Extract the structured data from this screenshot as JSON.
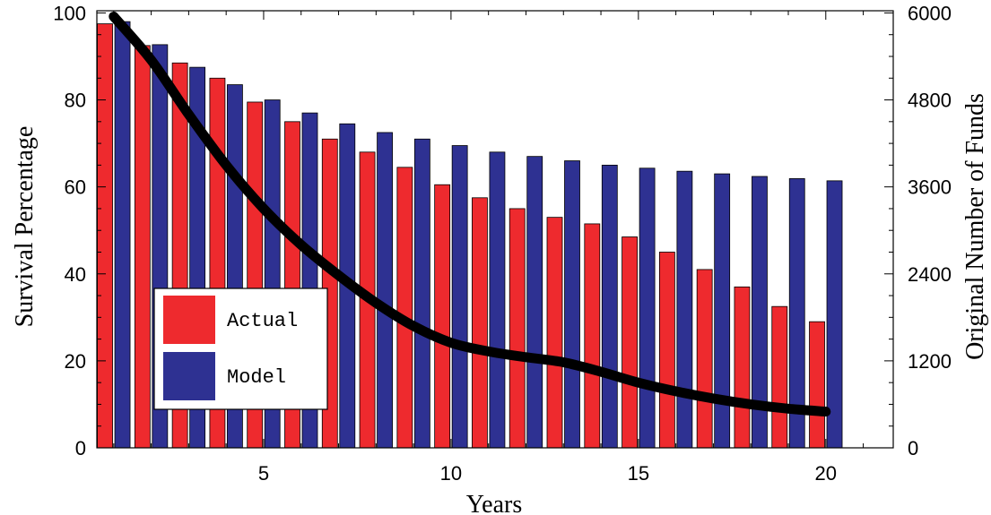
{
  "chart_data": {
    "type": "bar",
    "x": [
      1,
      2,
      3,
      4,
      5,
      6,
      7,
      8,
      9,
      10,
      11,
      12,
      13,
      14,
      15,
      16,
      17,
      18,
      19,
      20
    ],
    "series": [
      {
        "name": "Actual",
        "kind": "bar",
        "axis": "left",
        "color": "#ee2a2e",
        "values": [
          97.5,
          92.5,
          88.5,
          85,
          79.5,
          75,
          71,
          68,
          64.5,
          60.5,
          57.5,
          55,
          53,
          51.5,
          48.5,
          45,
          41,
          37,
          32.5,
          29
        ]
      },
      {
        "name": "Model",
        "kind": "bar",
        "axis": "left",
        "color": "#2e3192",
        "values": [
          98,
          92.7,
          87.5,
          83.5,
          80,
          77,
          74.5,
          72.5,
          71,
          69.5,
          68,
          67,
          66,
          65,
          64.3,
          63.6,
          63,
          62.4,
          61.9,
          61.4
        ]
      },
      {
        "kind": "line",
        "axis": "right",
        "color": "#000000",
        "values": [
          5950,
          5350,
          4600,
          3900,
          3300,
          2800,
          2380,
          2000,
          1680,
          1450,
          1330,
          1250,
          1180,
          1050,
          900,
          780,
          680,
          600,
          540,
          500
        ]
      }
    ],
    "xlabel": "Years",
    "ylabel": "Survival Percentage",
    "y2label": "Original Number of Funds",
    "xticks": [
      5,
      10,
      15,
      20
    ],
    "yticks": [
      0,
      20,
      40,
      60,
      80,
      100
    ],
    "y2ticks": [
      0,
      1200,
      2400,
      3600,
      4800,
      6000
    ],
    "xlim": [
      0.55,
      21.8
    ],
    "ylim": [
      0,
      100.5
    ],
    "y2lim": [
      0,
      6030
    ],
    "legend": {
      "position": "bottom-left",
      "entries": [
        {
          "label": "Actual",
          "color": "#ee2a2e"
        },
        {
          "label": "Model",
          "color": "#2e3192"
        }
      ]
    },
    "grid": false
  }
}
